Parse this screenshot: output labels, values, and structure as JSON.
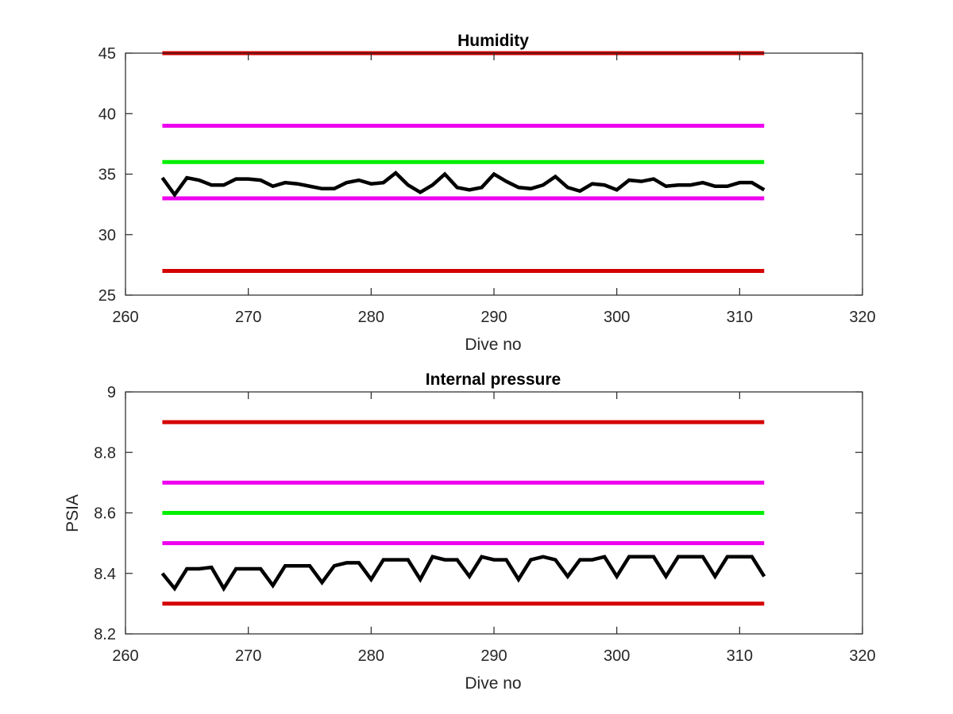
{
  "colors": {
    "red": "#d40000",
    "magenta": "#ee00ee",
    "green": "#00ee00",
    "series": "#000000",
    "axis": "#262626"
  },
  "chart_data": [
    {
      "type": "line",
      "title": "Humidity",
      "xlabel": "Dive no",
      "ylabel": "",
      "xlim": [
        260,
        320
      ],
      "ylim": [
        25,
        45
      ],
      "xticks": [
        "260",
        "270",
        "280",
        "290",
        "300",
        "310",
        "320"
      ],
      "yticks": [
        "25",
        "30",
        "35",
        "40",
        "45"
      ],
      "grid": false,
      "threshold_lines": [
        {
          "y": 45,
          "color": "red",
          "x_range": [
            263,
            312
          ]
        },
        {
          "y": 39,
          "color": "magenta",
          "x_range": [
            263,
            312
          ]
        },
        {
          "y": 36,
          "color": "green",
          "x_range": [
            263,
            312
          ]
        },
        {
          "y": 33,
          "color": "magenta",
          "x_range": [
            263,
            312
          ]
        },
        {
          "y": 27,
          "color": "red",
          "x_range": [
            263,
            312
          ]
        }
      ],
      "series": [
        {
          "x": [
            263,
            264,
            265,
            266,
            267,
            268,
            269,
            270,
            271,
            272,
            273,
            274,
            275,
            276,
            277,
            278,
            279,
            280,
            281,
            282,
            283,
            284,
            285,
            286,
            287,
            288,
            289,
            290,
            291,
            292,
            293,
            294,
            295,
            296,
            297,
            298,
            299,
            300,
            301,
            302,
            303,
            304,
            305,
            306,
            307,
            308,
            309,
            310,
            311,
            312
          ],
          "values": [
            34.7,
            33.3,
            34.7,
            34.5,
            34.1,
            34.1,
            34.6,
            34.6,
            34.5,
            34.0,
            34.3,
            34.2,
            34.0,
            33.8,
            33.8,
            34.3,
            34.5,
            34.2,
            34.3,
            35.1,
            34.1,
            33.5,
            34.1,
            35.0,
            33.9,
            33.7,
            33.9,
            35.0,
            34.4,
            33.9,
            33.8,
            34.1,
            34.8,
            33.9,
            33.6,
            34.2,
            34.1,
            33.7,
            34.5,
            34.4,
            34.6,
            34.0,
            34.1,
            34.1,
            34.3,
            34.0,
            34.0,
            34.3,
            34.3,
            33.7
          ]
        }
      ]
    },
    {
      "type": "line",
      "title": "Internal pressure",
      "xlabel": "Dive no",
      "ylabel": "PSIA",
      "xlim": [
        260,
        320
      ],
      "ylim": [
        8.2,
        9.0
      ],
      "xticks": [
        "260",
        "270",
        "280",
        "290",
        "300",
        "310",
        "320"
      ],
      "yticks": [
        "8.2",
        "8.4",
        "8.6",
        "8.8",
        "9"
      ],
      "grid": false,
      "threshold_lines": [
        {
          "y": 8.9,
          "color": "red",
          "x_range": [
            263,
            312
          ]
        },
        {
          "y": 8.7,
          "color": "magenta",
          "x_range": [
            263,
            312
          ]
        },
        {
          "y": 8.6,
          "color": "green",
          "x_range": [
            263,
            312
          ]
        },
        {
          "y": 8.5,
          "color": "magenta",
          "x_range": [
            263,
            312
          ]
        },
        {
          "y": 8.3,
          "color": "red",
          "x_range": [
            263,
            312
          ]
        }
      ],
      "series": [
        {
          "x": [
            263,
            264,
            265,
            266,
            267,
            268,
            269,
            270,
            271,
            272,
            273,
            274,
            275,
            276,
            277,
            278,
            279,
            280,
            281,
            282,
            283,
            284,
            285,
            286,
            287,
            288,
            289,
            290,
            291,
            292,
            293,
            294,
            295,
            296,
            297,
            298,
            299,
            300,
            301,
            302,
            303,
            304,
            305,
            306,
            307,
            308,
            309,
            310,
            311,
            312
          ],
          "values": [
            8.4,
            8.35,
            8.415,
            8.415,
            8.42,
            8.35,
            8.415,
            8.415,
            8.415,
            8.36,
            8.425,
            8.425,
            8.425,
            8.37,
            8.425,
            8.435,
            8.435,
            8.38,
            8.445,
            8.445,
            8.445,
            8.38,
            8.455,
            8.445,
            8.445,
            8.39,
            8.455,
            8.445,
            8.445,
            8.38,
            8.445,
            8.455,
            8.445,
            8.39,
            8.445,
            8.445,
            8.455,
            8.39,
            8.455,
            8.455,
            8.455,
            8.39,
            8.455,
            8.455,
            8.455,
            8.39,
            8.455,
            8.455,
            8.455,
            8.39
          ]
        }
      ]
    }
  ]
}
